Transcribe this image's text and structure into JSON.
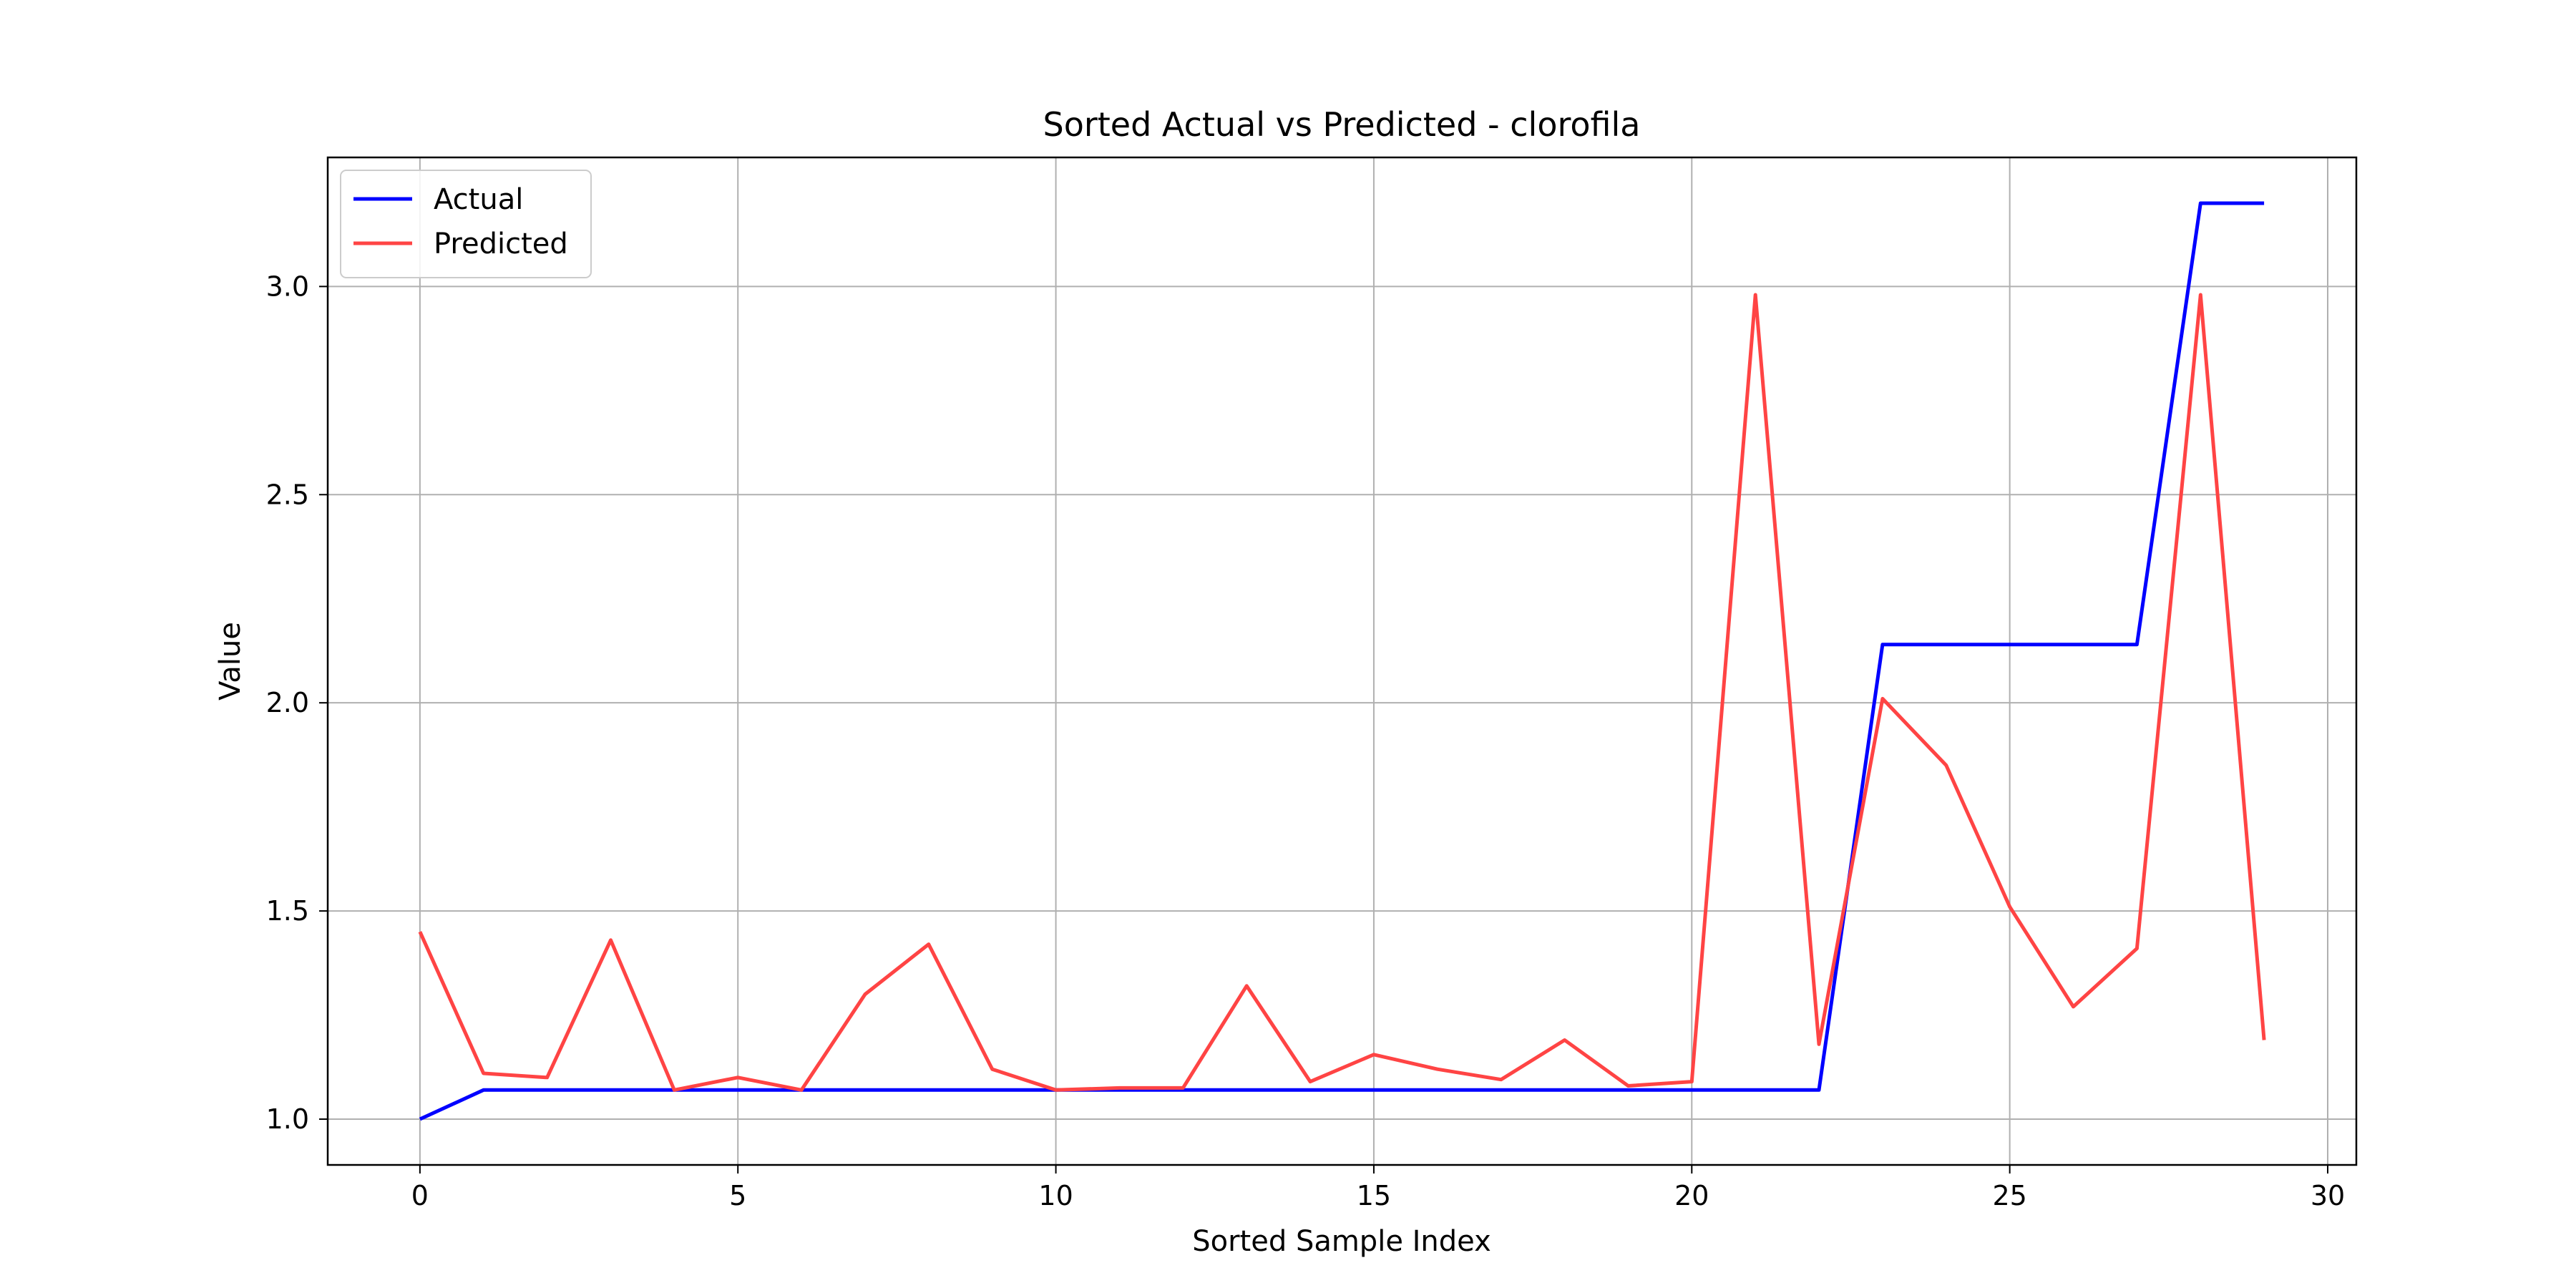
{
  "chart_data": {
    "type": "line",
    "title": "Sorted Actual vs Predicted - clorofila",
    "xlabel": "Sorted Sample Index",
    "ylabel": "Value",
    "xlim": [
      -1.45,
      30.45
    ],
    "ylim": [
      0.89,
      3.31
    ],
    "xticks": [
      0,
      5,
      10,
      15,
      20,
      25,
      30
    ],
    "yticks": [
      1.0,
      1.5,
      2.0,
      2.5,
      3.0
    ],
    "xtick_labels": [
      "0",
      "5",
      "10",
      "15",
      "20",
      "25",
      "30"
    ],
    "ytick_labels": [
      "1.0",
      "1.5",
      "2.0",
      "2.5",
      "3.0"
    ],
    "grid": true,
    "legend": "top-left",
    "x": [
      0,
      1,
      2,
      3,
      4,
      5,
      6,
      7,
      8,
      9,
      10,
      11,
      12,
      13,
      14,
      15,
      16,
      17,
      18,
      19,
      20,
      21,
      22,
      23,
      24,
      25,
      26,
      27,
      28,
      29
    ],
    "series": [
      {
        "name": "Actual",
        "color": "#0000ff",
        "values": [
          1.0,
          1.07,
          1.07,
          1.07,
          1.07,
          1.07,
          1.07,
          1.07,
          1.07,
          1.07,
          1.07,
          1.07,
          1.07,
          1.07,
          1.07,
          1.07,
          1.07,
          1.07,
          1.07,
          1.07,
          1.07,
          1.07,
          1.07,
          2.14,
          2.14,
          2.14,
          2.14,
          2.14,
          3.2,
          3.2
        ]
      },
      {
        "name": "Predicted",
        "color": "#ff4444",
        "values": [
          1.45,
          1.11,
          1.1,
          1.43,
          1.07,
          1.1,
          1.07,
          1.3,
          1.42,
          1.12,
          1.07,
          1.075,
          1.075,
          1.32,
          1.09,
          1.155,
          1.12,
          1.095,
          1.19,
          1.08,
          1.09,
          2.98,
          1.18,
          2.01,
          1.85,
          1.51,
          1.27,
          1.41,
          2.98,
          1.19
        ]
      }
    ]
  }
}
